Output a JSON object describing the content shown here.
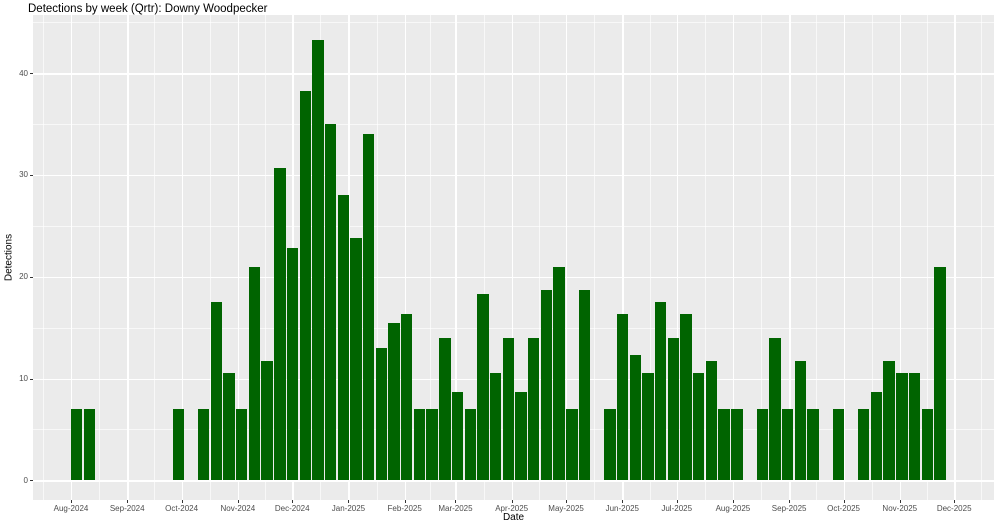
{
  "title": "Detections by week (Qrtr): Downy Woodpecker",
  "chart_data": {
    "type": "bar",
    "title": "Detections by week (Qrtr): Downy Woodpecker",
    "xlabel": "Date",
    "ylabel": "Detections",
    "x_tick_labels": [
      "Aug-2024",
      "Sep-2024",
      "Oct-2024",
      "Nov-2024",
      "Dec-2024",
      "Jan-2025",
      "Feb-2025",
      "Mar-2025",
      "Apr-2025",
      "May-2025",
      "Jun-2025",
      "Jul-2025",
      "Aug-2025",
      "Sep-2025",
      "Oct-2025",
      "Nov-2025",
      "Dec-2025"
    ],
    "y_tick_values": [
      0,
      10,
      20,
      30,
      40
    ],
    "ylim": [
      -2.3,
      45.7
    ],
    "grid": true,
    "legend": "none",
    "bar_color": "#006400",
    "panel_color": "#EBEBEB",
    "gridline_color": "#FFFFFF",
    "bars": [
      {
        "week": 0,
        "value": 7
      },
      {
        "week": 1,
        "value": 7
      },
      {
        "week": 8,
        "value": 7
      },
      {
        "week": 10,
        "value": 7
      },
      {
        "week": 11,
        "value": 17.5
      },
      {
        "week": 12,
        "value": 10.5
      },
      {
        "week": 13,
        "value": 7
      },
      {
        "week": 14,
        "value": 21
      },
      {
        "week": 15,
        "value": 11.7
      },
      {
        "week": 16,
        "value": 30.7
      },
      {
        "week": 17,
        "value": 22.8
      },
      {
        "week": 18,
        "value": 38.3
      },
      {
        "week": 19,
        "value": 43.3
      },
      {
        "week": 20,
        "value": 35
      },
      {
        "week": 21,
        "value": 28
      },
      {
        "week": 22,
        "value": 23.8
      },
      {
        "week": 23,
        "value": 34
      },
      {
        "week": 24,
        "value": 13
      },
      {
        "week": 25,
        "value": 15.5
      },
      {
        "week": 26,
        "value": 16.3
      },
      {
        "week": 27,
        "value": 7
      },
      {
        "week": 28,
        "value": 7
      },
      {
        "week": 29,
        "value": 14
      },
      {
        "week": 30,
        "value": 8.7
      },
      {
        "week": 31,
        "value": 7
      },
      {
        "week": 32,
        "value": 18.3
      },
      {
        "week": 33,
        "value": 10.5
      },
      {
        "week": 34,
        "value": 14
      },
      {
        "week": 35,
        "value": 8.7
      },
      {
        "week": 36,
        "value": 14
      },
      {
        "week": 37,
        "value": 18.7
      },
      {
        "week": 38,
        "value": 21
      },
      {
        "week": 39,
        "value": 7
      },
      {
        "week": 40,
        "value": 18.7
      },
      {
        "week": 42,
        "value": 7
      },
      {
        "week": 43,
        "value": 16.3
      },
      {
        "week": 44,
        "value": 12.3
      },
      {
        "week": 45,
        "value": 10.5
      },
      {
        "week": 46,
        "value": 17.5
      },
      {
        "week": 47,
        "value": 14
      },
      {
        "week": 48,
        "value": 16.3
      },
      {
        "week": 49,
        "value": 10.5
      },
      {
        "week": 50,
        "value": 11.7
      },
      {
        "week": 51,
        "value": 7
      },
      {
        "week": 52,
        "value": 7
      },
      {
        "week": 54,
        "value": 7
      },
      {
        "week": 55,
        "value": 14
      },
      {
        "week": 56,
        "value": 7
      },
      {
        "week": 57,
        "value": 11.7
      },
      {
        "week": 58,
        "value": 7
      },
      {
        "week": 60,
        "value": 7
      },
      {
        "week": 62,
        "value": 7
      },
      {
        "week": 63,
        "value": 8.7
      },
      {
        "week": 64,
        "value": 11.7
      },
      {
        "week": 65,
        "value": 10.5
      },
      {
        "week": 66,
        "value": 10.5
      },
      {
        "week": 67,
        "value": 7
      },
      {
        "week": 68,
        "value": 21
      }
    ],
    "bars_note": "week = week index offset from first bar (week containing Aug-01-2024); value = detections read from y axis"
  }
}
